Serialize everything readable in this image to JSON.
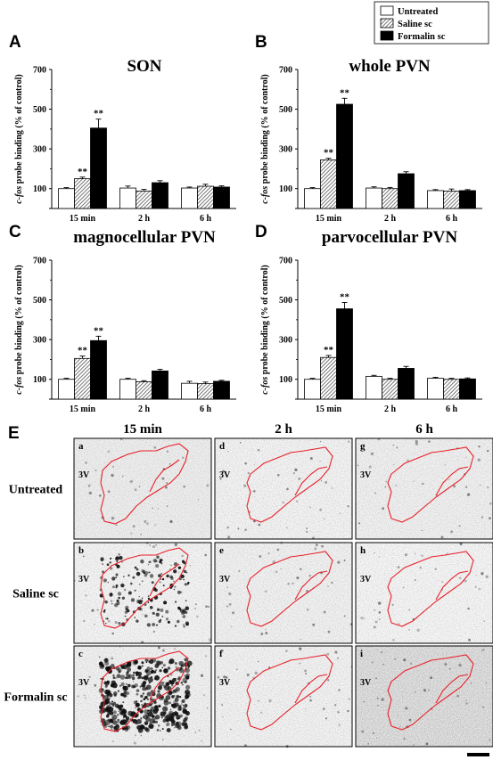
{
  "legend": {
    "entries": [
      {
        "label": "Untreated",
        "fill": "#ffffff"
      },
      {
        "label": "Saline sc",
        "fill": "hatch"
      },
      {
        "label": "Formalin sc",
        "fill": "#000000"
      }
    ]
  },
  "chart_data": [
    {
      "type": "bar",
      "label": "A",
      "title": "SON",
      "ylabel_italic": "c-fos",
      "ylabel_rest": " probe binding (% of control)",
      "yticks": [
        100,
        300,
        500,
        700
      ],
      "ylim": [
        0,
        700
      ],
      "categories": [
        "15 min",
        "2 h",
        "6 h"
      ],
      "series": [
        {
          "name": "Untreated",
          "values": [
            100,
            103,
            103
          ],
          "errors": [
            5,
            10,
            5
          ]
        },
        {
          "name": "Saline sc",
          "values": [
            150,
            88,
            112
          ],
          "errors": [
            8,
            8,
            10
          ]
        },
        {
          "name": "Formalin sc",
          "values": [
            405,
            130,
            108
          ],
          "errors": [
            45,
            10,
            6
          ]
        }
      ],
      "annotations": [
        {
          "category": 0,
          "series": 1,
          "text": "**"
        },
        {
          "category": 0,
          "series": 2,
          "text": "**"
        }
      ]
    },
    {
      "type": "bar",
      "label": "B",
      "title": "whole PVN",
      "ylabel_italic": "c-fos",
      "ylabel_rest": " probe binding (% of control)",
      "yticks": [
        100,
        300,
        500,
        700
      ],
      "ylim": [
        0,
        700
      ],
      "categories": [
        "15 min",
        "2 h",
        "6 h"
      ],
      "series": [
        {
          "name": "Untreated",
          "values": [
            100,
            103,
            90
          ],
          "errors": [
            5,
            6,
            5
          ]
        },
        {
          "name": "Saline sc",
          "values": [
            245,
            100,
            88
          ],
          "errors": [
            8,
            6,
            10
          ]
        },
        {
          "name": "Formalin sc",
          "values": [
            525,
            175,
            90
          ],
          "errors": [
            30,
            10,
            5
          ]
        }
      ],
      "annotations": [
        {
          "category": 0,
          "series": 1,
          "text": "**"
        },
        {
          "category": 0,
          "series": 2,
          "text": "**"
        }
      ]
    },
    {
      "type": "bar",
      "label": "C",
      "title": "magnocellular PVN",
      "ylabel_italic": "c-fos",
      "ylabel_rest": " probe binding (% of control)",
      "yticks": [
        100,
        300,
        500,
        700
      ],
      "ylim": [
        0,
        700
      ],
      "categories": [
        "15 min",
        "2 h",
        "6 h"
      ],
      "series": [
        {
          "name": "Untreated",
          "values": [
            100,
            100,
            80
          ],
          "errors": [
            5,
            5,
            10
          ]
        },
        {
          "name": "Saline sc",
          "values": [
            205,
            88,
            78
          ],
          "errors": [
            12,
            5,
            8
          ]
        },
        {
          "name": "Formalin sc",
          "values": [
            295,
            142,
            90
          ],
          "errors": [
            22,
            8,
            5
          ]
        }
      ],
      "annotations": [
        {
          "category": 0,
          "series": 1,
          "text": "**"
        },
        {
          "category": 0,
          "series": 2,
          "text": "**"
        }
      ]
    },
    {
      "type": "bar",
      "label": "D",
      "title": "parvocellular PVN",
      "ylabel_italic": "c-fos",
      "ylabel_rest": " probe binding (% of control)",
      "yticks": [
        100,
        300,
        500,
        700
      ],
      "ylim": [
        0,
        700
      ],
      "categories": [
        "15 min",
        "2 h",
        "6 h"
      ],
      "series": [
        {
          "name": "Untreated",
          "values": [
            100,
            115,
            105
          ],
          "errors": [
            5,
            5,
            5
          ]
        },
        {
          "name": "Saline sc",
          "values": [
            210,
            100,
            100
          ],
          "errors": [
            10,
            5,
            5
          ]
        },
        {
          "name": "Formalin sc",
          "values": [
            455,
            155,
            102
          ],
          "errors": [
            32,
            10,
            5
          ]
        }
      ],
      "annotations": [
        {
          "category": 0,
          "series": 1,
          "text": "**"
        },
        {
          "category": 0,
          "series": 2,
          "text": "**"
        }
      ]
    }
  ],
  "micrographs": {
    "label": "E",
    "columns": [
      "15 min",
      "2 h",
      "6 h"
    ],
    "rows": [
      "Untreated",
      "Saline sc",
      "Formalin sc"
    ],
    "panel_letters": [
      "a",
      "d",
      "g",
      "b",
      "e",
      "h",
      "c",
      "f",
      "i"
    ],
    "ventricle_label": "3V",
    "outline_color": "#e8202a"
  }
}
